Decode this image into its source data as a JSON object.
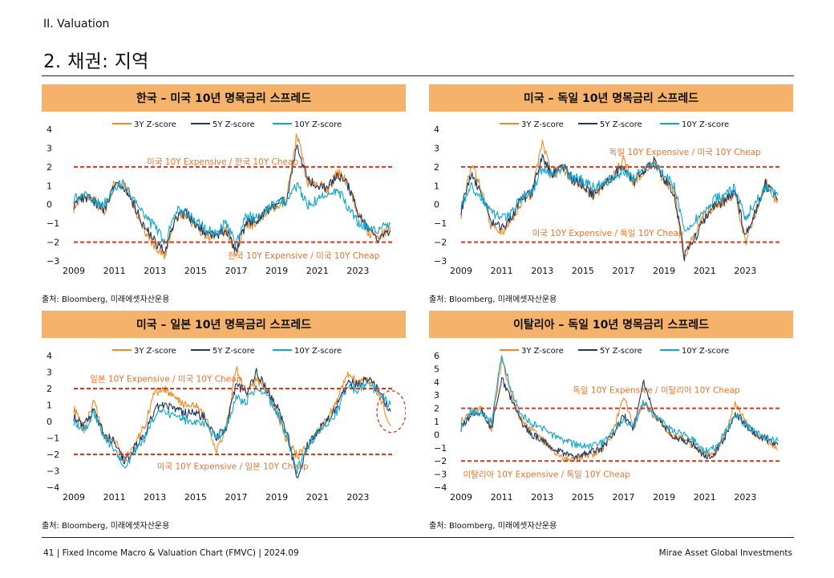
{
  "header": {
    "section": "II. Valuation",
    "title": "2. 채권: 지역"
  },
  "footer": {
    "left": "41 | Fixed Income Macro & Valuation Chart (FMVC) | 2024.09",
    "right": "Mirae Asset Global Investments"
  },
  "colors": {
    "y3": "#f08a24",
    "y5": "#1f3864",
    "y10": "#12a7cc",
    "band": "#d9361e",
    "annotation": "#e8742c",
    "header_bg": "#f5b26b"
  },
  "chart_data": [
    {
      "type": "line",
      "title": "한국 – 미국 10년 명목금리 스프레드",
      "source": "출처: Bloomberg, 미래에셋자산운용",
      "legend": [
        "3Y Z-score",
        "5Y Z-score",
        "10Y Z-score"
      ],
      "x_ticks": [
        "2009",
        "2011",
        "2013",
        "2015",
        "2017",
        "2019",
        "2021",
        "2023"
      ],
      "xlim": [
        2009,
        2024.8
      ],
      "ylim": [
        -3,
        4
      ],
      "y_ticks": [
        4,
        3,
        2,
        1,
        0,
        -1,
        -2,
        -3
      ],
      "reference_lines": [
        2,
        -2
      ],
      "annotations": [
        {
          "text": "미국 10Y Expensive / 한국 10Y Cheap",
          "x": 2012.6,
          "y": 2.3
        },
        {
          "text": "한국 10Y Expensive / 미국 10Y Cheap",
          "x": 2016.6,
          "y": -2.7
        }
      ],
      "series": [
        {
          "name": "3Y Z-score",
          "x": [
            2009,
            2009.5,
            2010,
            2010.5,
            2011,
            2011.5,
            2012,
            2012.5,
            2013,
            2013.5,
            2014,
            2014.5,
            2015,
            2015.5,
            2016,
            2016.5,
            2017,
            2017.5,
            2018,
            2018.5,
            2019,
            2019.5,
            2020,
            2020.5,
            2021,
            2021.5,
            2022,
            2022.5,
            2023,
            2023.5,
            2024,
            2024.6
          ],
          "y": [
            -0.2,
            0.5,
            0.3,
            -0.5,
            1.2,
            1.0,
            -0.2,
            -1.4,
            -2.2,
            -2.8,
            -0.8,
            -0.5,
            -1.2,
            -1.6,
            -1.8,
            -1.4,
            -2.6,
            -1.0,
            -1.1,
            -0.4,
            -0.2,
            0.4,
            3.8,
            1.2,
            1.1,
            0.8,
            1.7,
            1.2,
            -0.5,
            -1.5,
            -1.8,
            -1.2
          ]
        },
        {
          "name": "5Y Z-score",
          "x": [
            2009,
            2009.5,
            2010,
            2010.5,
            2011,
            2011.5,
            2012,
            2012.5,
            2013,
            2013.5,
            2014,
            2014.5,
            2015,
            2015.5,
            2016,
            2016.5,
            2017,
            2017.5,
            2018,
            2018.5,
            2019,
            2019.5,
            2020,
            2020.5,
            2021,
            2021.5,
            2022,
            2022.5,
            2023,
            2023.5,
            2024,
            2024.6
          ],
          "y": [
            0.0,
            0.4,
            0.2,
            -0.3,
            1.1,
            0.9,
            -0.1,
            -1.2,
            -2.0,
            -2.6,
            -0.7,
            -0.4,
            -1.1,
            -1.5,
            -1.7,
            -1.3,
            -2.4,
            -0.9,
            -0.9,
            -0.3,
            -0.1,
            0.3,
            3.2,
            1.3,
            1.0,
            0.9,
            1.6,
            1.0,
            -0.4,
            -1.4,
            -1.9,
            -1.4
          ]
        },
        {
          "name": "10Y Z-score",
          "x": [
            2009,
            2009.5,
            2010,
            2010.5,
            2011,
            2011.5,
            2012,
            2012.5,
            2013,
            2013.5,
            2014,
            2014.5,
            2015,
            2015.5,
            2016,
            2016.5,
            2017,
            2017.5,
            2018,
            2018.5,
            2019,
            2019.5,
            2020,
            2020.5,
            2021,
            2021.5,
            2022,
            2022.5,
            2023,
            2023.5,
            2024,
            2024.6
          ],
          "y": [
            0.3,
            0.5,
            0.2,
            0.0,
            1.0,
            1.1,
            0.2,
            -0.7,
            -1.2,
            -2.0,
            -0.4,
            -0.3,
            -0.9,
            -1.3,
            -1.5,
            -1.0,
            -2.1,
            -0.6,
            -0.7,
            -0.2,
            0.0,
            0.2,
            1.0,
            0.0,
            0.2,
            0.6,
            0.8,
            -0.1,
            -0.9,
            -1.2,
            -1.3,
            -1.0
          ]
        }
      ]
    },
    {
      "type": "line",
      "title": "미국 – 독일 10년 명목금리 스프레드",
      "source": "출처: Bloomberg, 미래에셋자산운용",
      "legend": [
        "3Y Z-score",
        "5Y Z-score",
        "10Y Z-score"
      ],
      "x_ticks": [
        "2009",
        "2011",
        "2013",
        "2015",
        "2017",
        "2019",
        "2021",
        "2023"
      ],
      "xlim": [
        2009,
        2024.8
      ],
      "ylim": [
        -3,
        4
      ],
      "y_ticks": [
        4,
        3,
        2,
        1,
        0,
        -1,
        -2,
        -3
      ],
      "reference_lines": [
        2,
        -2
      ],
      "annotations": [
        {
          "text": "독일 10Y Expensive / 미국 10Y Cheap",
          "x": 2016.3,
          "y": 2.8
        },
        {
          "text": "미국 10Y Expensive / 독일 10Y Cheap",
          "x": 2012.5,
          "y": -1.5
        }
      ],
      "series": [
        {
          "name": "3Y Z-score",
          "x": [
            2009,
            2009.5,
            2010,
            2010.5,
            2011,
            2011.5,
            2012,
            2012.5,
            2013,
            2013.5,
            2014,
            2014.5,
            2015,
            2015.5,
            2016,
            2016.5,
            2017,
            2017.5,
            2018,
            2018.5,
            2019,
            2019.5,
            2020,
            2020.5,
            2021,
            2021.5,
            2022,
            2022.5,
            2023,
            2023.5,
            2024,
            2024.6
          ],
          "y": [
            -0.5,
            2.1,
            0.8,
            -1.2,
            -1.5,
            -0.8,
            0.2,
            0.6,
            3.3,
            1.5,
            2.0,
            1.2,
            1.0,
            0.4,
            1.0,
            1.5,
            2.4,
            1.1,
            1.7,
            2.3,
            1.2,
            0.8,
            -2.9,
            -1.5,
            -0.6,
            0.0,
            0.2,
            0.6,
            -2.0,
            -0.5,
            1.2,
            0.1
          ]
        },
        {
          "name": "5Y Z-score",
          "x": [
            2009,
            2009.5,
            2010,
            2010.5,
            2011,
            2011.5,
            2012,
            2012.5,
            2013,
            2013.5,
            2014,
            2014.5,
            2015,
            2015.5,
            2016,
            2016.5,
            2017,
            2017.5,
            2018,
            2018.5,
            2019,
            2019.5,
            2020,
            2020.5,
            2021,
            2021.5,
            2022,
            2022.5,
            2023,
            2023.5,
            2024,
            2024.6
          ],
          "y": [
            -0.3,
            1.7,
            0.6,
            -0.9,
            -1.3,
            -0.6,
            0.3,
            0.6,
            2.6,
            1.6,
            2.1,
            1.3,
            1.1,
            0.5,
            1.0,
            1.5,
            2.1,
            1.2,
            1.8,
            2.3,
            1.4,
            0.6,
            -2.8,
            -1.8,
            -0.8,
            -0.1,
            0.2,
            0.7,
            -1.7,
            -0.4,
            1.1,
            0.2
          ]
        },
        {
          "name": "10Y Z-score",
          "x": [
            2009,
            2009.5,
            2010,
            2010.5,
            2011,
            2011.5,
            2012,
            2012.5,
            2013,
            2013.5,
            2014,
            2014.5,
            2015,
            2015.5,
            2016,
            2016.5,
            2017,
            2017.5,
            2018,
            2018.5,
            2019,
            2019.5,
            2020,
            2020.5,
            2021,
            2021.5,
            2022,
            2022.5,
            2023,
            2023.5,
            2024,
            2024.6
          ],
          "y": [
            0.0,
            0.9,
            0.4,
            -0.4,
            -0.8,
            -0.3,
            0.4,
            0.7,
            1.9,
            1.5,
            1.9,
            1.4,
            1.3,
            0.9,
            1.2,
            1.4,
            1.8,
            1.4,
            1.9,
            2.1,
            1.6,
            1.0,
            -1.4,
            -0.9,
            -0.3,
            0.3,
            0.5,
            0.9,
            -0.7,
            0.1,
            0.9,
            0.5
          ]
        }
      ]
    },
    {
      "type": "line",
      "title": "미국 – 일본 10년 명목금리 스프레드",
      "source": "출처: Bloomberg, 미래에셋자산운용",
      "legend": [
        "3Y Z-score",
        "5Y Z-score",
        "10Y Z-score"
      ],
      "x_ticks": [
        "2009",
        "2011",
        "2013",
        "2015",
        "2017",
        "2019",
        "2021",
        "2023"
      ],
      "xlim": [
        2009,
        2024.8
      ],
      "ylim": [
        -4,
        4
      ],
      "y_ticks": [
        4,
        3,
        2,
        1,
        0,
        -1,
        -2,
        -3,
        -4
      ],
      "reference_lines": [
        2,
        -2
      ],
      "annotations": [
        {
          "text": "일본 10Y Expensive / 미국 10Y Cheap",
          "x": 2009.8,
          "y": 2.6
        },
        {
          "text": "미국 10Y Expensive / 일본 10Y Cheap",
          "x": 2013.1,
          "y": -2.7
        }
      ],
      "series": [
        {
          "name": "3Y Z-score",
          "x": [
            2009,
            2009.5,
            2010,
            2010.5,
            2011,
            2011.5,
            2012,
            2012.5,
            2013,
            2013.5,
            2014,
            2014.5,
            2015,
            2015.5,
            2016,
            2016.5,
            2017,
            2017.5,
            2018,
            2018.5,
            2019,
            2019.5,
            2020,
            2020.5,
            2021,
            2021.5,
            2022,
            2022.5,
            2023,
            2023.5,
            2024,
            2024.6
          ],
          "y": [
            0.8,
            -0.5,
            1.2,
            -0.9,
            -1.2,
            -2.3,
            -1.5,
            -0.2,
            1.8,
            1.9,
            1.4,
            1.0,
            0.9,
            0.3,
            -1.9,
            -0.4,
            3.2,
            1.7,
            2.6,
            1.9,
            0.6,
            -1.2,
            -2.1,
            -1.6,
            -0.6,
            0.1,
            1.4,
            3.0,
            2.3,
            2.7,
            1.7,
            -0.3
          ]
        },
        {
          "name": "5Y Z-score",
          "x": [
            2009,
            2009.5,
            2010,
            2010.5,
            2011,
            2011.5,
            2012,
            2012.5,
            2013,
            2013.5,
            2014,
            2014.5,
            2015,
            2015.5,
            2016,
            2016.5,
            2017,
            2017.5,
            2018,
            2018.5,
            2019,
            2019.5,
            2020,
            2020.5,
            2021,
            2021.5,
            2022,
            2022.5,
            2023,
            2023.5,
            2024,
            2024.6
          ],
          "y": [
            0.3,
            -0.3,
            0.8,
            -0.8,
            -1.2,
            -2.4,
            -1.6,
            -0.8,
            0.8,
            1.0,
            0.8,
            0.5,
            0.5,
            0.2,
            -1.0,
            -0.3,
            2.2,
            1.8,
            3.0,
            2.0,
            0.9,
            -0.6,
            -3.6,
            -1.5,
            -0.6,
            0.0,
            1.0,
            2.4,
            2.2,
            2.6,
            1.9,
            0.6
          ]
        },
        {
          "name": "10Y Z-score",
          "x": [
            2009,
            2009.5,
            2010,
            2010.5,
            2011,
            2011.5,
            2012,
            2012.5,
            2013,
            2013.5,
            2014,
            2014.5,
            2015,
            2015.5,
            2016,
            2016.5,
            2017,
            2017.5,
            2018,
            2018.5,
            2019,
            2019.5,
            2020,
            2020.5,
            2021,
            2021.5,
            2022,
            2022.5,
            2023,
            2023.5,
            2024,
            2024.6
          ],
          "y": [
            0.0,
            -0.6,
            0.5,
            -1.0,
            -1.6,
            -2.8,
            -1.8,
            -1.0,
            0.3,
            0.6,
            0.3,
            0.1,
            0.0,
            -0.2,
            -1.1,
            -0.4,
            1.4,
            1.2,
            2.1,
            1.6,
            0.6,
            -0.9,
            -3.0,
            -1.6,
            -0.7,
            -0.2,
            0.7,
            2.1,
            1.9,
            2.3,
            1.8,
            1.0
          ]
        }
      ]
    },
    {
      "type": "line",
      "title": "이탈리아 – 독일 10년 명목금리 스프레드",
      "source": "출처: Bloomberg, 미래에셋자산운용",
      "legend": [
        "3Y Z-score",
        "5Y Z-score",
        "10Y Z-score"
      ],
      "x_ticks": [
        "2009",
        "2011",
        "2013",
        "2015",
        "2017",
        "2019",
        "2021",
        "2023"
      ],
      "xlim": [
        2009,
        2024.8
      ],
      "ylim": [
        -4,
        6
      ],
      "y_ticks": [
        6,
        5,
        4,
        3,
        2,
        1,
        0,
        -1,
        -2,
        -3,
        -4
      ],
      "reference_lines": [
        2,
        -2
      ],
      "annotations": [
        {
          "text": "독일 10Y Expensive / 이탈리아 10Y Cheap",
          "x": 2014.5,
          "y": 3.4
        },
        {
          "text": "이탈리아 10Y Expensive / 독일 10Y Cheap",
          "x": 2009.1,
          "y": -3.0
        }
      ],
      "series": [
        {
          "name": "3Y Z-score",
          "x": [
            2009,
            2009.5,
            2010,
            2010.5,
            2011,
            2011.5,
            2012,
            2012.5,
            2013,
            2013.5,
            2014,
            2014.5,
            2015,
            2015.5,
            2016,
            2016.5,
            2017,
            2017.5,
            2018,
            2018.5,
            2019,
            2019.5,
            2020,
            2020.5,
            2021,
            2021.5,
            2022,
            2022.5,
            2023,
            2023.5,
            2024,
            2024.6
          ],
          "y": [
            1.0,
            1.5,
            2.0,
            0.4,
            5.8,
            2.8,
            1.0,
            0.3,
            -0.3,
            -1.2,
            -1.8,
            -1.9,
            -1.7,
            -1.5,
            -1.0,
            0.2,
            3.0,
            0.5,
            2.4,
            1.5,
            0.5,
            -0.2,
            -0.4,
            -0.9,
            -1.6,
            -1.4,
            0.0,
            2.4,
            1.0,
            0.0,
            -0.4,
            -1.2
          ]
        },
        {
          "name": "5Y Z-score",
          "x": [
            2009,
            2009.5,
            2010,
            2010.5,
            2011,
            2011.5,
            2012,
            2012.5,
            2013,
            2013.5,
            2014,
            2014.5,
            2015,
            2015.5,
            2016,
            2016.5,
            2017,
            2017.5,
            2018,
            2018.5,
            2019,
            2019.5,
            2020,
            2020.5,
            2021,
            2021.5,
            2022,
            2022.5,
            2023,
            2023.5,
            2024,
            2024.6
          ],
          "y": [
            0.5,
            1.5,
            1.8,
            0.5,
            4.2,
            2.6,
            0.9,
            0.0,
            -0.4,
            -1.0,
            -1.4,
            -1.6,
            -1.5,
            -1.3,
            -1.0,
            0.0,
            1.5,
            0.5,
            4.0,
            1.6,
            0.6,
            -0.2,
            -0.4,
            -0.8,
            -1.7,
            -1.4,
            -0.2,
            1.6,
            0.8,
            0.0,
            -0.3,
            -0.8
          ]
        },
        {
          "name": "10Y Z-score",
          "x": [
            2009,
            2009.5,
            2010,
            2010.5,
            2011,
            2011.5,
            2012,
            2012.5,
            2013,
            2013.5,
            2014,
            2014.5,
            2015,
            2015.5,
            2016,
            2016.5,
            2017,
            2017.5,
            2018,
            2018.5,
            2019,
            2019.5,
            2020,
            2020.5,
            2021,
            2021.5,
            2022,
            2022.5,
            2023,
            2023.5,
            2024,
            2024.6
          ],
          "y": [
            0.6,
            1.8,
            1.6,
            1.0,
            6.0,
            3.2,
            1.5,
            0.8,
            0.5,
            0.0,
            -0.4,
            -0.7,
            -0.9,
            -0.8,
            -0.6,
            0.3,
            1.2,
            0.6,
            2.5,
            1.4,
            0.8,
            0.3,
            0.0,
            -0.5,
            -1.3,
            -1.0,
            0.1,
            1.4,
            0.8,
            0.1,
            -0.2,
            -0.5
          ]
        }
      ]
    }
  ]
}
